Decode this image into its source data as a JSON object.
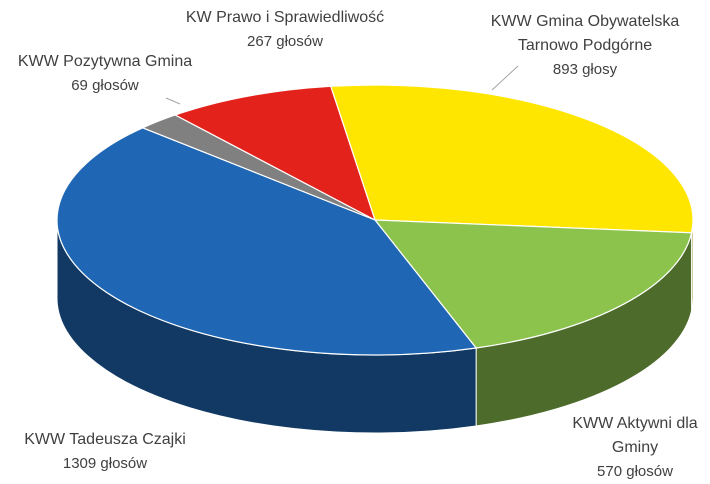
{
  "chart_data": {
    "type": "pie3d",
    "categories": [
      "KWW Gmina Obywatelska Tarnowo Podgórne",
      "KWW Aktywni dla Gminy",
      "KWW Tadeusza Czajki",
      "KWW Pozytywna Gmina",
      "KW Prawo i Sprawiedliwość"
    ],
    "values": [
      893,
      570,
      1309,
      69,
      267
    ],
    "value_labels": [
      "893 głosy",
      "570 głosów",
      "1309 głosów",
      "69 głosów",
      "267 głosów"
    ],
    "colors": [
      "#ffe600",
      "#8cc34d",
      "#1f67b4",
      "#808080",
      "#e3221b"
    ]
  }
}
